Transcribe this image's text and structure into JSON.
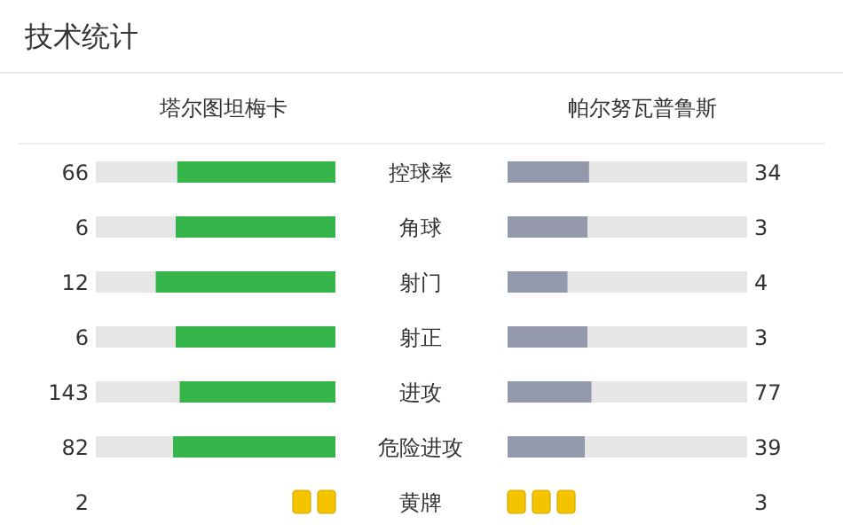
{
  "chart_data": {
    "type": "other",
    "title": "技术统计",
    "categories": [
      "控球率",
      "角球",
      "射门",
      "射正",
      "进攻",
      "危险进攻",
      "黄牌"
    ],
    "series": [
      {
        "name": "塔尔图坦梅卡",
        "colors": [
          "#36b54a",
          "#36b54a",
          "#36b54a",
          "#36b54a",
          "#36b54a",
          "#36b54a",
          "#f5c400"
        ],
        "values": [
          66,
          6,
          12,
          6,
          143,
          82,
          2
        ],
        "value_labels": [
          "66",
          "6",
          "12",
          "6",
          "143",
          "82",
          "2"
        ]
      },
      {
        "name": "帕尔努瓦普鲁斯",
        "colors": [
          "#9398aa",
          "#9398aa",
          "#9398aa",
          "#9398aa",
          "#9398aa",
          "#9398aa",
          "#f5c400"
        ],
        "values": [
          34,
          3,
          4,
          3,
          77,
          39,
          3
        ],
        "value_labels": [
          "34",
          "3",
          "4",
          "3",
          "77",
          "39",
          "3"
        ]
      }
    ]
  }
}
